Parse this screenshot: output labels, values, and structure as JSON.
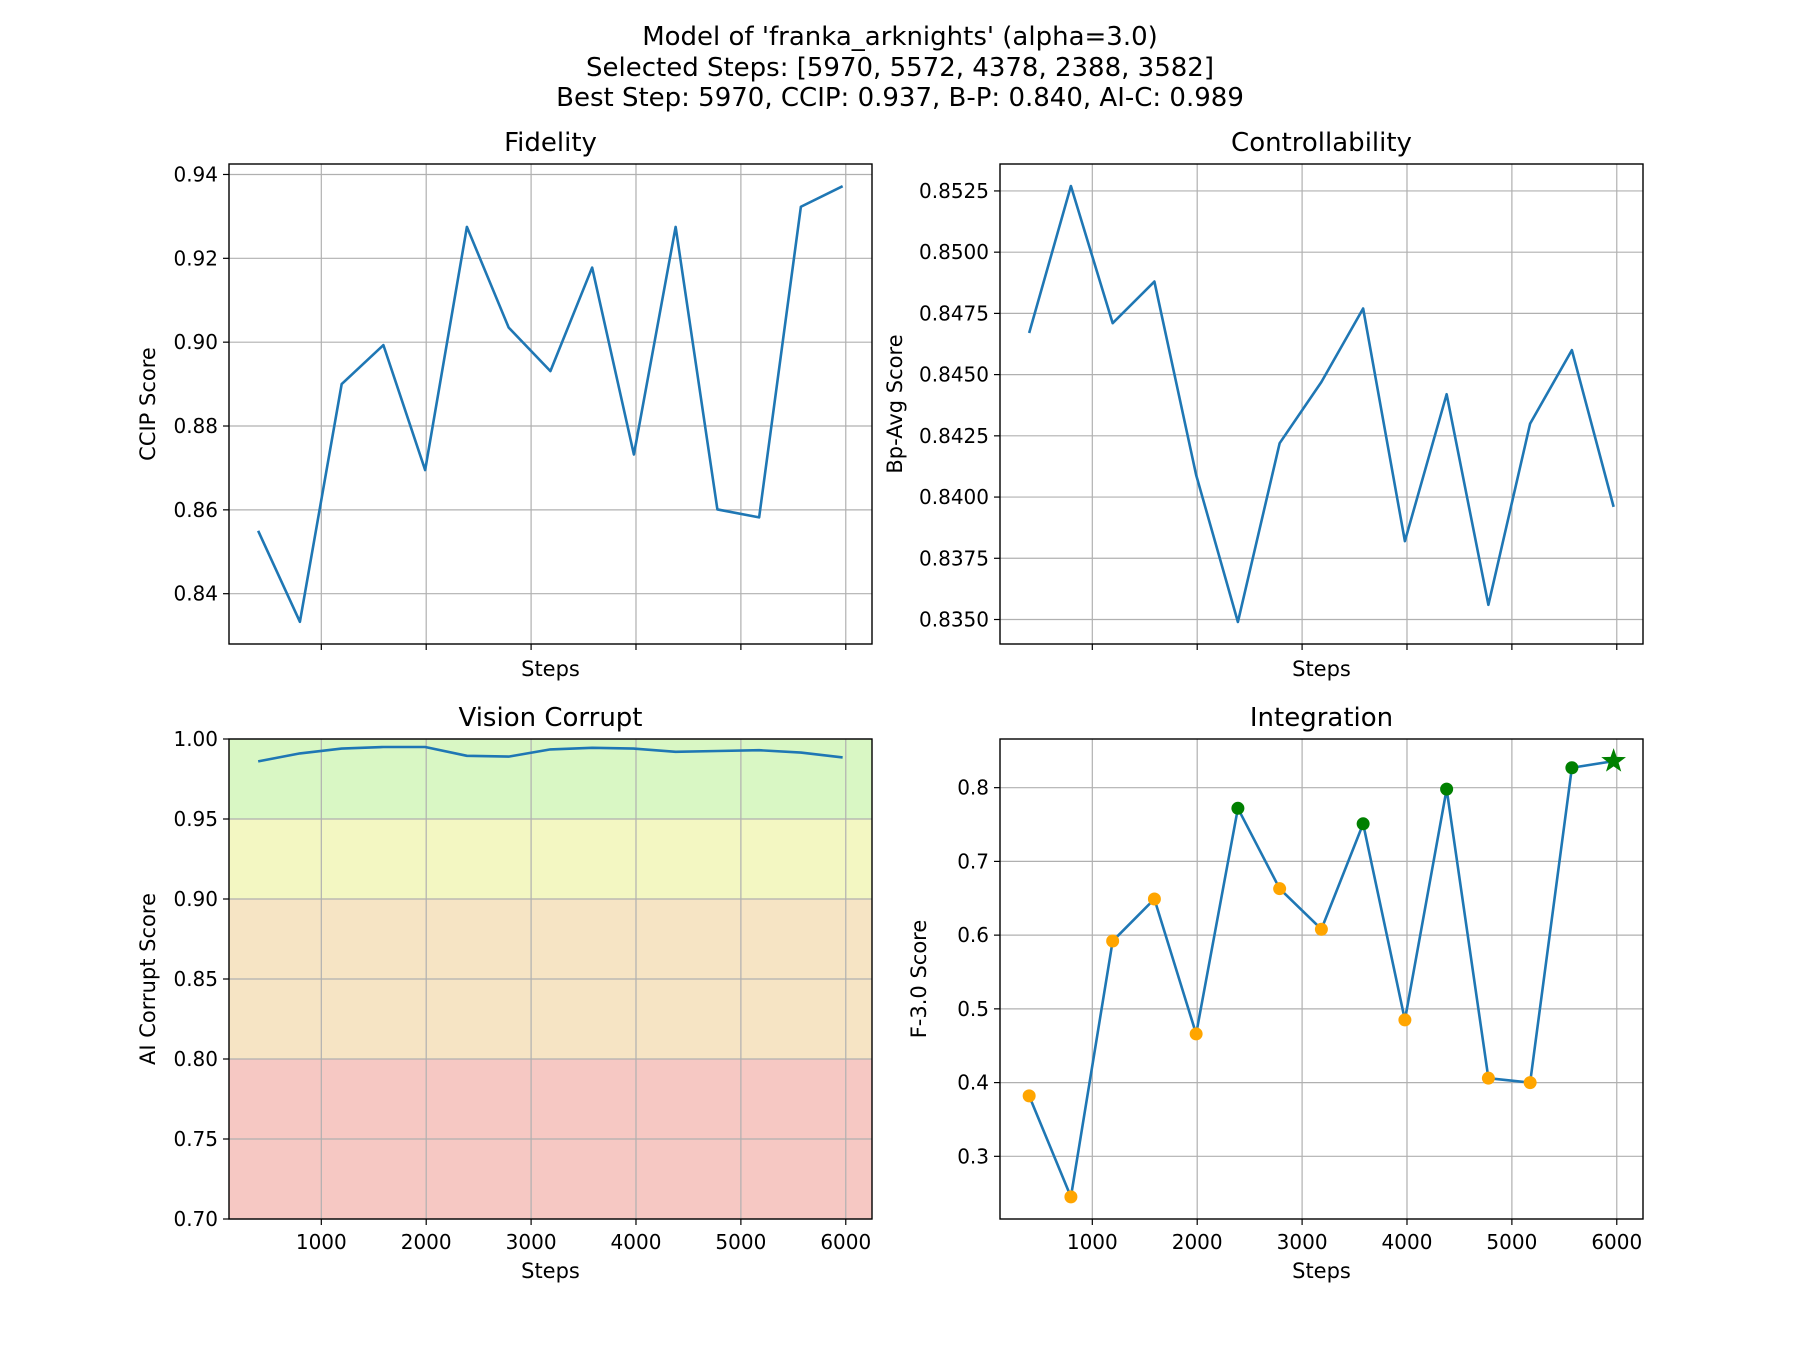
{
  "figure": {
    "title_lines": [
      "Model of 'franka_arknights' (alpha=3.0)",
      "Selected Steps: [5970, 5572, 4378, 2388, 3582]",
      "Best Step: 5970, CCIP: 0.937, B-P: 0.840, AI-C: 0.989"
    ]
  },
  "colors": {
    "line": "#1f77b4",
    "grid": "#b0b0b0",
    "selected_point": "#008000",
    "other_point": "#ffa500",
    "band_excellent": "#d9f7c4",
    "band_good": "#f3f7c2",
    "band_fair": "#f6e4c4",
    "band_poor": "#f6c8c3"
  },
  "chart_data": [
    {
      "type": "line",
      "title": "Fidelity",
      "xlabel": "Steps",
      "ylabel": "CCIP Score",
      "x": [
        398,
        796,
        1194,
        1592,
        1990,
        2388,
        2786,
        3184,
        3582,
        3980,
        4378,
        4776,
        5174,
        5572,
        5970
      ],
      "y": [
        0.855,
        0.8333,
        0.89,
        0.8993,
        0.8695,
        0.9275,
        0.9035,
        0.8931,
        0.9178,
        0.8732,
        0.9275,
        0.8601,
        0.8582,
        0.9323,
        0.9372
      ],
      "xlim": [
        120,
        6250
      ],
      "ylim": [
        0.828,
        0.9425
      ],
      "xticks": [
        1000,
        2000,
        3000,
        4000,
        5000,
        6000
      ],
      "yticks": [
        0.84,
        0.86,
        0.88,
        0.9,
        0.92,
        0.94
      ],
      "ytick_labels": [
        "0.84",
        "0.86",
        "0.88",
        "0.90",
        "0.92",
        "0.94"
      ],
      "show_xtick_labels": false,
      "grid": true
    },
    {
      "type": "line",
      "title": "Controllability",
      "xlabel": "Steps",
      "ylabel": "Bp-Avg Score",
      "x": [
        398,
        796,
        1194,
        1592,
        1990,
        2388,
        2786,
        3184,
        3582,
        3980,
        4378,
        4776,
        5174,
        5572,
        5970
      ],
      "y": [
        0.8467,
        0.8527,
        0.8471,
        0.8488,
        0.8409,
        0.8349,
        0.8422,
        0.8447,
        0.8477,
        0.8382,
        0.8442,
        0.8356,
        0.843,
        0.846,
        0.8396
      ],
      "xlim": [
        120,
        6250
      ],
      "ylim": [
        0.834,
        0.8536
      ],
      "xticks": [
        1000,
        2000,
        3000,
        4000,
        5000,
        6000
      ],
      "yticks": [
        0.835,
        0.8375,
        0.84,
        0.8425,
        0.845,
        0.8475,
        0.85,
        0.8525
      ],
      "ytick_labels": [
        "0.8350",
        "0.8375",
        "0.8400",
        "0.8425",
        "0.8450",
        "0.8475",
        "0.8500",
        "0.8525"
      ],
      "show_xtick_labels": false,
      "grid": true
    },
    {
      "type": "line",
      "title": "Vision Corrupt",
      "xlabel": "Steps",
      "ylabel": "AI Corrupt Score",
      "x": [
        398,
        796,
        1194,
        1592,
        1990,
        2388,
        2786,
        3184,
        3582,
        3980,
        4378,
        4776,
        5174,
        5572,
        5970
      ],
      "y": [
        0.986,
        0.991,
        0.994,
        0.995,
        0.995,
        0.9895,
        0.989,
        0.9935,
        0.9945,
        0.994,
        0.992,
        0.9925,
        0.993,
        0.9915,
        0.9885
      ],
      "xlim": [
        120,
        6250
      ],
      "ylim": [
        0.7,
        1.0
      ],
      "xticks": [
        1000,
        2000,
        3000,
        4000,
        5000,
        6000
      ],
      "xtick_labels": [
        "1000",
        "2000",
        "3000",
        "4000",
        "5000",
        "6000"
      ],
      "yticks": [
        0.7,
        0.75,
        0.8,
        0.85,
        0.9,
        0.95,
        1.0
      ],
      "ytick_labels": [
        "0.70",
        "0.75",
        "0.80",
        "0.85",
        "0.90",
        "0.95",
        "1.00"
      ],
      "show_xtick_labels": true,
      "background_bands": [
        {
          "from": 0.95,
          "to": 1.0,
          "color": "#d9f7c4"
        },
        {
          "from": 0.9,
          "to": 0.95,
          "color": "#f3f7c2"
        },
        {
          "from": 0.8,
          "to": 0.9,
          "color": "#f6e4c4"
        },
        {
          "from": 0.7,
          "to": 0.8,
          "color": "#f6c8c3"
        }
      ],
      "grid": true
    },
    {
      "type": "line",
      "title": "Integration",
      "xlabel": "Steps",
      "ylabel": "F-3.0 Score",
      "x": [
        398,
        796,
        1194,
        1592,
        1990,
        2388,
        2786,
        3184,
        3582,
        3980,
        4378,
        4776,
        5174,
        5572,
        5970
      ],
      "y": [
        0.382,
        0.245,
        0.592,
        0.649,
        0.466,
        0.772,
        0.663,
        0.608,
        0.751,
        0.485,
        0.798,
        0.406,
        0.4,
        0.827,
        0.836
      ],
      "xlim": [
        120,
        6250
      ],
      "ylim": [
        0.215,
        0.866
      ],
      "xticks": [
        1000,
        2000,
        3000,
        4000,
        5000,
        6000
      ],
      "xtick_labels": [
        "1000",
        "2000",
        "3000",
        "4000",
        "5000",
        "6000"
      ],
      "yticks": [
        0.3,
        0.4,
        0.5,
        0.6,
        0.7,
        0.8
      ],
      "ytick_labels": [
        "0.3",
        "0.4",
        "0.5",
        "0.6",
        "0.7",
        "0.8"
      ],
      "show_xtick_labels": true,
      "selected_steps": [
        5970,
        5572,
        4378,
        2388,
        3582
      ],
      "best_step": 5970,
      "grid": true
    }
  ]
}
